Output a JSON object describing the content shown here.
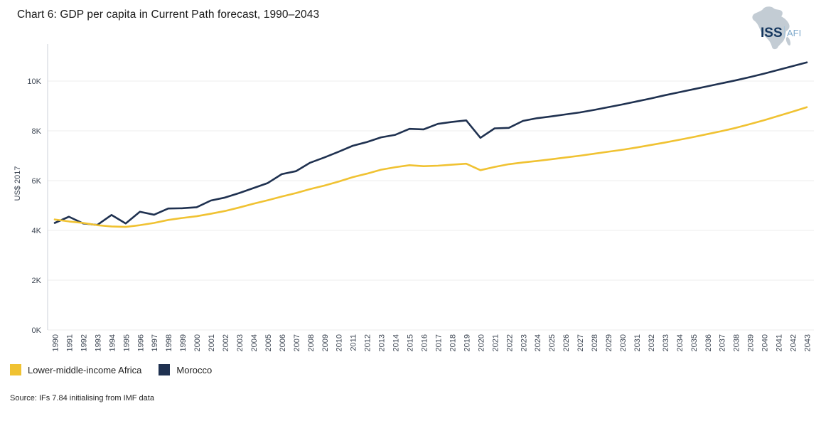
{
  "header": {
    "logo": {
      "iss": "ISS",
      "afi": "AFI"
    }
  },
  "chart_data": {
    "type": "line",
    "title": "Chart 6: GDP per capita in Current Path forecast, 1990–2043",
    "xlabel": "",
    "ylabel": "US$ 2017",
    "x": [
      1990,
      1991,
      1992,
      1993,
      1994,
      1995,
      1996,
      1997,
      1998,
      1999,
      2000,
      2001,
      2002,
      2003,
      2004,
      2005,
      2006,
      2007,
      2008,
      2009,
      2010,
      2011,
      2012,
      2013,
      2014,
      2015,
      2016,
      2017,
      2018,
      2019,
      2020,
      2021,
      2022,
      2023,
      2024,
      2025,
      2026,
      2027,
      2028,
      2029,
      2030,
      2031,
      2032,
      2033,
      2034,
      2035,
      2036,
      2037,
      2038,
      2039,
      2040,
      2041,
      2042,
      2043
    ],
    "ylim": [
      0,
      11000
    ],
    "ytick_values": [
      0,
      2000,
      4000,
      6000,
      8000,
      10000
    ],
    "ytick_labels": [
      "0K",
      "2K",
      "4K",
      "6K",
      "8K",
      "10K"
    ],
    "grid": true,
    "legend_position": "bottom-left",
    "series": [
      {
        "name": "Lower-middle-income Africa",
        "color": "#F0C232",
        "values": [
          4440,
          4360,
          4300,
          4210,
          4160,
          4140,
          4210,
          4300,
          4420,
          4500,
          4570,
          4670,
          4780,
          4920,
          5070,
          5210,
          5360,
          5500,
          5660,
          5800,
          5960,
          6140,
          6280,
          6440,
          6540,
          6620,
          6580,
          6600,
          6640,
          6680,
          6420,
          6550,
          6660,
          6730,
          6790,
          6860,
          6930,
          7000,
          7080,
          7160,
          7240,
          7330,
          7430,
          7530,
          7640,
          7750,
          7870,
          7990,
          8120,
          8270,
          8430,
          8600,
          8770,
          8950
        ]
      },
      {
        "name": "Morocco",
        "color": "#1F3150",
        "values": [
          4300,
          4550,
          4280,
          4220,
          4620,
          4280,
          4750,
          4630,
          4880,
          4890,
          4930,
          5200,
          5320,
          5500,
          5700,
          5900,
          6260,
          6380,
          6720,
          6930,
          7160,
          7400,
          7550,
          7740,
          7840,
          8080,
          8060,
          8280,
          8360,
          8420,
          7720,
          8100,
          8120,
          8400,
          8510,
          8580,
          8660,
          8740,
          8840,
          8950,
          9060,
          9180,
          9300,
          9430,
          9550,
          9670,
          9790,
          9910,
          10030,
          10160,
          10300,
          10450,
          10600,
          10750
        ]
      }
    ]
  },
  "source": {
    "text": "Source: IFs 7.84 initialising from IMF data"
  }
}
